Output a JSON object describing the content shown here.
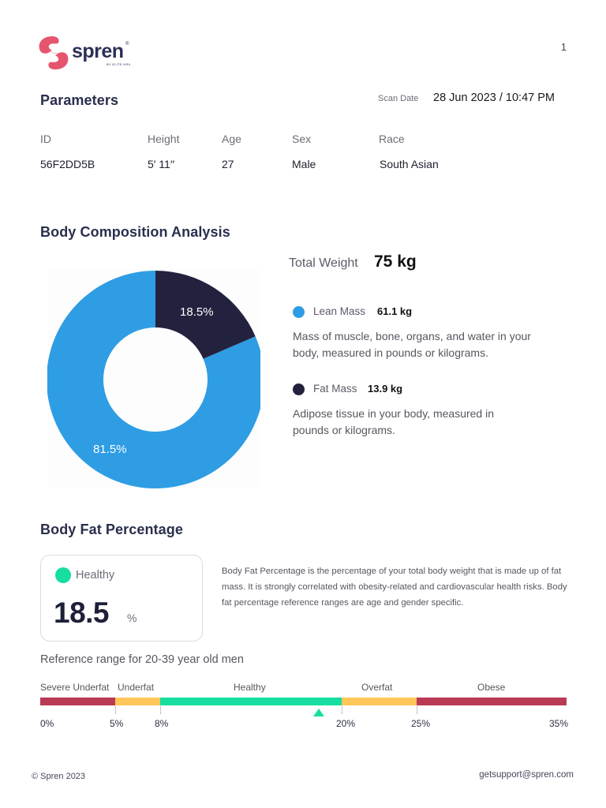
{
  "header": {
    "logo_word": "spren",
    "logo_sub": "BY ELITE HRV",
    "logo_reg": "®",
    "page_number": "1"
  },
  "parameters": {
    "title": "Parameters",
    "scan_date_label": "Scan Date",
    "scan_date_value": "28 Jun 2023 / 10:47 PM",
    "fields": [
      {
        "label": "ID",
        "value": "56F2DD5B"
      },
      {
        "label": "Height",
        "value": "5′ 11′′"
      },
      {
        "label": "Age",
        "value": "27"
      },
      {
        "label": "Sex",
        "value": "Male"
      },
      {
        "label": "Race",
        "value": "South Asian"
      }
    ]
  },
  "composition": {
    "title": "Body Composition Analysis",
    "total_weight_label": "Total Weight",
    "total_weight_value": "75 kg",
    "lean": {
      "name": "Lean Mass",
      "value": "61.1 kg",
      "description": "Mass of muscle, bone, organs, and water in your body, measured in pounds or kilograms.",
      "color": "#2e9de4"
    },
    "fat": {
      "name": "Fat Mass",
      "value": "13.9 kg",
      "description": "Adipose tissue in your body, measured in pounds or kilograms.",
      "color": "#22223f"
    }
  },
  "chart_data": {
    "type": "pie",
    "subtype": "donut",
    "title": "Body Composition Analysis",
    "categories": [
      "Fat Mass",
      "Lean Mass"
    ],
    "values": [
      18.5,
      81.5
    ],
    "labels": [
      "18.5%",
      "81.5%"
    ],
    "colors": [
      "#22223f",
      "#2e9de4"
    ],
    "start_angle_deg": 0,
    "direction": "clockwise",
    "legend": [
      {
        "name": "Lean Mass",
        "value": "61.1 kg"
      },
      {
        "name": "Fat Mass",
        "value": "13.9 kg"
      }
    ]
  },
  "body_fat": {
    "title": "Body Fat Percentage",
    "status": "Healthy",
    "status_color": "#17dea0",
    "value": "18.5",
    "unit": "%",
    "description": "Body Fat Percentage is the percentage of your total body weight that is made up of fat mass. It is strongly correlated with obesity-related and cardiovascular health risks. Body fat percentage reference ranges are age and gender specific.",
    "reference_title": "Reference range for 20-39 year old men",
    "ranges": [
      {
        "label": "Severe Underfat",
        "from": 0,
        "to": 5,
        "color": "#b93a55"
      },
      {
        "label": "Underfat",
        "from": 5,
        "to": 8,
        "color": "#ffc65a"
      },
      {
        "label": "Healthy",
        "from": 8,
        "to": 20,
        "color": "#17dea0"
      },
      {
        "label": "Overfat",
        "from": 20,
        "to": 25,
        "color": "#ffc65a"
      },
      {
        "label": "Obese",
        "from": 25,
        "to": 35,
        "color": "#b93a55"
      }
    ],
    "ticks": [
      "0%",
      "5%",
      "8%",
      "20%",
      "25%",
      "35%"
    ],
    "marker_value": 18.5
  },
  "footer": {
    "copyright": "© Spren 2023",
    "email": "getsupport@spren.com"
  }
}
